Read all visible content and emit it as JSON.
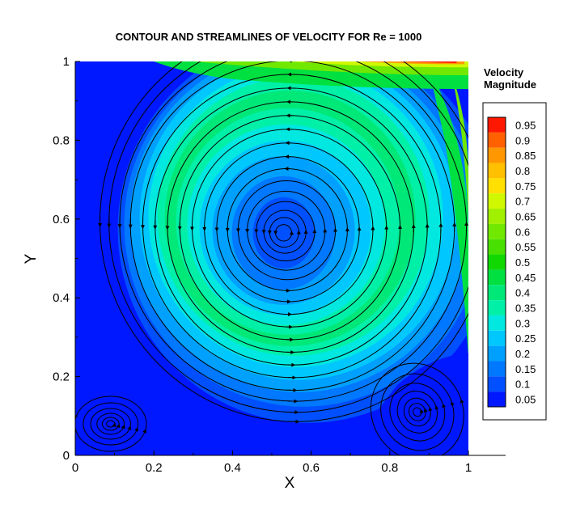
{
  "chart_data": {
    "type": "heatmap",
    "title": "CONTOUR AND STREAMLINES OF VELOCITY FOR Re = 1000",
    "xlabel": "X",
    "ylabel": "Y",
    "xlim": [
      0,
      1
    ],
    "ylim": [
      0,
      1
    ],
    "x_ticks": [
      "0",
      "0.2",
      "0.4",
      "0.6",
      "0.8",
      "1"
    ],
    "y_ticks": [
      "0",
      "0.2",
      "0.4",
      "0.6",
      "0.8",
      "1"
    ],
    "legend": {
      "title_line1": "Velocity",
      "title_line2": "Magnitude",
      "placement": "right",
      "levels": [
        "0.05",
        "0.1",
        "0.15",
        "0.2",
        "0.25",
        "0.3",
        "0.35",
        "0.4",
        "0.45",
        "0.5",
        "0.55",
        "0.6",
        "0.65",
        "0.7",
        "0.75",
        "0.8",
        "0.85",
        "0.9",
        "0.95"
      ],
      "colors": [
        "#0018ff",
        "#0050ff",
        "#0078ff",
        "#00a0ff",
        "#00c8ff",
        "#00e8e0",
        "#00f0a8",
        "#00e878",
        "#00e040",
        "#10d800",
        "#48e000",
        "#70e800",
        "#a0f000",
        "#d0f800",
        "#ffe000",
        "#ffc000",
        "#ff9800",
        "#ff6000",
        "#ff1800"
      ]
    },
    "vortices": [
      {
        "name": "primary",
        "x": 0.53,
        "y": 0.565
      },
      {
        "name": "bottom-left",
        "x": 0.09,
        "y": 0.08
      },
      {
        "name": "bottom-right",
        "x": 0.87,
        "y": 0.11
      }
    ]
  }
}
